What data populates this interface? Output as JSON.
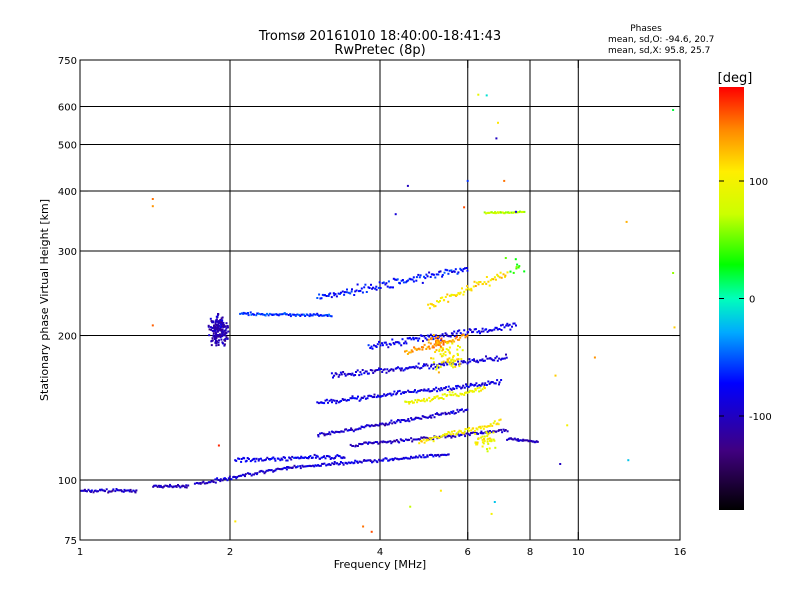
{
  "chart_data": {
    "type": "scatter",
    "title": "Tromsø 20161010 18:40:00-18:41:43",
    "subtitle": "RwPretec (8p)",
    "xlabel": "Frequency [MHz]",
    "ylabel": "Stationary phase Virtual Height [km]",
    "x_scale": "log",
    "y_scale": "log",
    "xlim": [
      1,
      16
    ],
    "ylim": [
      75,
      750
    ],
    "x_ticks": [
      1,
      2,
      4,
      6,
      8,
      10,
      16
    ],
    "x_ticklabels": [
      "1",
      "2",
      "4",
      "6",
      "8",
      "10",
      "16"
    ],
    "x_gridlines": [
      2,
      4,
      6,
      8,
      10
    ],
    "y_ticks": [
      75,
      100,
      200,
      300,
      400,
      500,
      600,
      750
    ],
    "y_ticklabels": [
      "75",
      "100",
      "200",
      "300",
      "400",
      "500",
      "600",
      "750"
    ],
    "y_gridlines": [
      100,
      200,
      300,
      400,
      500,
      600
    ],
    "grid": true,
    "phases": {
      "heading": "Phases",
      "o_stats": "mean, sd,O: -94.6, 20.7",
      "x_stats": "mean, sd,X:  95.8, 25.7"
    },
    "colorbar": {
      "label": "[deg]",
      "range": [
        -180,
        180
      ],
      "ticks": [
        100,
        0,
        -100
      ],
      "ticklabels": [
        "100",
        "0",
        "-100"
      ]
    },
    "traces": [
      {
        "x": [
          1.0,
          1.3
        ],
        "y": [
          95,
          95
        ],
        "phase": -100,
        "spread": 0.01
      },
      {
        "x": [
          1.4,
          1.65
        ],
        "y": [
          97,
          97
        ],
        "phase": -100,
        "spread": 0.01
      },
      {
        "x": [
          1.7,
          2.6
        ],
        "y": [
          98,
          106
        ],
        "phase": -95,
        "spread": 0.012
      },
      {
        "x": [
          2.6,
          5.5
        ],
        "y": [
          106,
          113
        ],
        "phase": -90,
        "spread": 0.012
      },
      {
        "x": [
          3.5,
          7.2
        ],
        "y": [
          118,
          127
        ],
        "phase": -100,
        "spread": 0.012
      },
      {
        "x": [
          3.0,
          6.0
        ],
        "y": [
          124,
          140
        ],
        "phase": -95,
        "spread": 0.015
      },
      {
        "x": [
          3.0,
          7.0
        ],
        "y": [
          145,
          160
        ],
        "phase": -85,
        "spread": 0.015
      },
      {
        "x": [
          3.2,
          7.2
        ],
        "y": [
          165,
          180
        ],
        "phase": -90,
        "spread": 0.02
      },
      {
        "x": [
          3.8,
          7.5
        ],
        "y": [
          190,
          210
        ],
        "phase": -80,
        "spread": 0.025
      },
      {
        "x": [
          2.1,
          3.2
        ],
        "y": [
          222,
          220
        ],
        "phase": -60,
        "spread": 0.01
      },
      {
        "x": [
          3.0,
          6.0
        ],
        "y": [
          240,
          275
        ],
        "phase": -70,
        "spread": 0.03
      },
      {
        "x": [
          7.2,
          8.3
        ],
        "y": [
          122,
          120
        ],
        "phase": -100,
        "spread": 0.01
      },
      {
        "x": [
          2.05,
          3.4
        ],
        "y": [
          110,
          112
        ],
        "phase": -80,
        "spread": 0.015
      },
      {
        "x": [
          4.5,
          6.5
        ],
        "y": [
          145,
          155
        ],
        "phase": 95,
        "spread": 0.02
      },
      {
        "x": [
          4.8,
          7.0
        ],
        "y": [
          120,
          132
        ],
        "phase": 105,
        "spread": 0.02
      },
      {
        "x": [
          4.5,
          6.0
        ],
        "y": [
          185,
          200
        ],
        "phase": 140,
        "spread": 0.02
      },
      {
        "x": [
          5.0,
          7.2
        ],
        "y": [
          230,
          270
        ],
        "phase": 110,
        "spread": 0.03
      },
      {
        "x": [
          6.5,
          7.8
        ],
        "y": [
          360,
          362
        ],
        "phase": 70,
        "spread": 0.005
      }
    ],
    "clusters": [
      {
        "x": 1.9,
        "y": 205,
        "phase": -105,
        "n": 170,
        "sx": 0.03,
        "sy": 0.05
      },
      {
        "x": 5.5,
        "y": 180,
        "phase": 100,
        "n": 60,
        "sx": 0.05,
        "sy": 0.05
      },
      {
        "x": 5.2,
        "y": 195,
        "phase": 140,
        "n": 25,
        "sx": 0.03,
        "sy": 0.03
      },
      {
        "x": 6.5,
        "y": 120,
        "phase": 100,
        "n": 40,
        "sx": 0.04,
        "sy": 0.03
      },
      {
        "x": 7.5,
        "y": 280,
        "phase": 40,
        "n": 10,
        "sx": 0.03,
        "sy": 0.04
      }
    ],
    "points": [
      {
        "x": 1.4,
        "y": 385,
        "phase": 150
      },
      {
        "x": 1.4,
        "y": 372,
        "phase": 140
      },
      {
        "x": 1.4,
        "y": 210,
        "phase": 155
      },
      {
        "x": 1.9,
        "y": 118,
        "phase": 170
      },
      {
        "x": 4.55,
        "y": 410,
        "phase": -100
      },
      {
        "x": 4.3,
        "y": 358,
        "phase": -90
      },
      {
        "x": 6.0,
        "y": 420,
        "phase": -60
      },
      {
        "x": 5.9,
        "y": 370,
        "phase": 160
      },
      {
        "x": 6.3,
        "y": 635,
        "phase": 90
      },
      {
        "x": 6.55,
        "y": 633,
        "phase": -10
      },
      {
        "x": 6.9,
        "y": 555,
        "phase": 110
      },
      {
        "x": 6.85,
        "y": 515,
        "phase": -100
      },
      {
        "x": 7.1,
        "y": 420,
        "phase": 150
      },
      {
        "x": 7.5,
        "y": 362,
        "phase": -90
      },
      {
        "x": 12.5,
        "y": 345,
        "phase": 130
      },
      {
        "x": 15.5,
        "y": 590,
        "phase": 20
      },
      {
        "x": 15.5,
        "y": 270,
        "phase": 60
      },
      {
        "x": 15.6,
        "y": 208,
        "phase": 120
      },
      {
        "x": 12.6,
        "y": 110,
        "phase": -20
      },
      {
        "x": 10.8,
        "y": 180,
        "phase": 140
      },
      {
        "x": 9.0,
        "y": 165,
        "phase": 120
      },
      {
        "x": 9.5,
        "y": 130,
        "phase": 100
      },
      {
        "x": 3.7,
        "y": 80,
        "phase": 150
      },
      {
        "x": 3.85,
        "y": 78,
        "phase": 160
      },
      {
        "x": 2.05,
        "y": 82,
        "phase": 110
      },
      {
        "x": 6.7,
        "y": 85,
        "phase": 100
      },
      {
        "x": 5.3,
        "y": 95,
        "phase": 110
      },
      {
        "x": 4.6,
        "y": 88,
        "phase": 70
      },
      {
        "x": 6.8,
        "y": 90,
        "phase": -20
      },
      {
        "x": 9.2,
        "y": 108,
        "phase": -100
      }
    ]
  }
}
